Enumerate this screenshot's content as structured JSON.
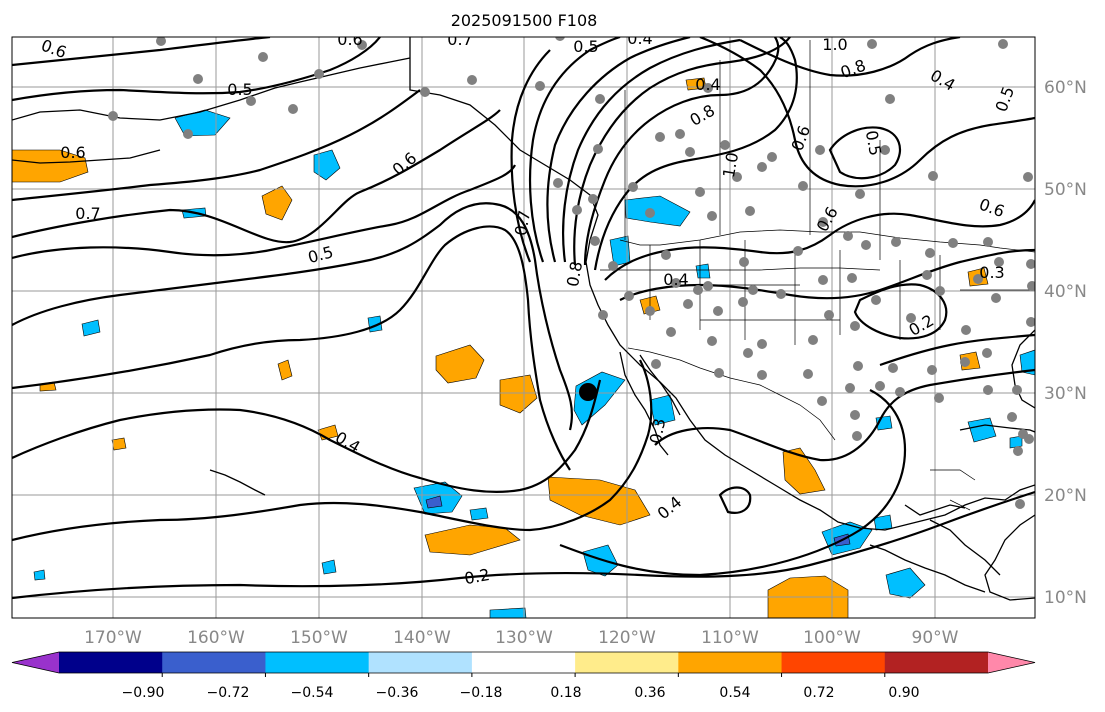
{
  "title": "2025091500 F108",
  "map": {
    "lon_labels": [
      "170°W",
      "160°W",
      "150°W",
      "140°W",
      "130°W",
      "120°W",
      "110°W",
      "100°W",
      "90°W"
    ],
    "lat_labels": [
      "60°N",
      "50°N",
      "40°N",
      "30°N",
      "20°N",
      "10°N"
    ],
    "contour_labels": [
      "0.6",
      "0.5",
      "0.7",
      "0.5",
      "0.4",
      "1.0",
      "0.8",
      "0.4",
      "0.5",
      "0.6",
      "0.6",
      "0.5",
      "0.7",
      "0.6",
      "0.8",
      "0.5",
      "0.8",
      "0.6",
      "0.6",
      "0.3",
      "0.4",
      "0.2",
      "0.4",
      "0.3",
      "0.4",
      "0.2",
      "1.0",
      "0.6",
      "0.7",
      "0.4"
    ],
    "marker": {
      "name": "black-dot",
      "lon": -124,
      "lat": 30
    }
  },
  "colorbar": {
    "tick_labels": [
      "−0.90",
      "−0.72",
      "−0.54",
      "−0.36",
      "−0.18",
      "0.18",
      "0.36",
      "0.54",
      "0.72",
      "0.90"
    ],
    "colors": [
      "#9932cc",
      "#00008b",
      "#3a5fcd",
      "#00bfff",
      "#b0e2ff",
      "#ffffff",
      "#ffec8b",
      "#ffa500",
      "#ff4500",
      "#b22222",
      "#ff88aa"
    ]
  },
  "colors": {
    "positive_shade": "#ffa500",
    "negative_shade": "#00bfff",
    "station_dot": "#808080",
    "axis_labels": "#888888"
  }
}
